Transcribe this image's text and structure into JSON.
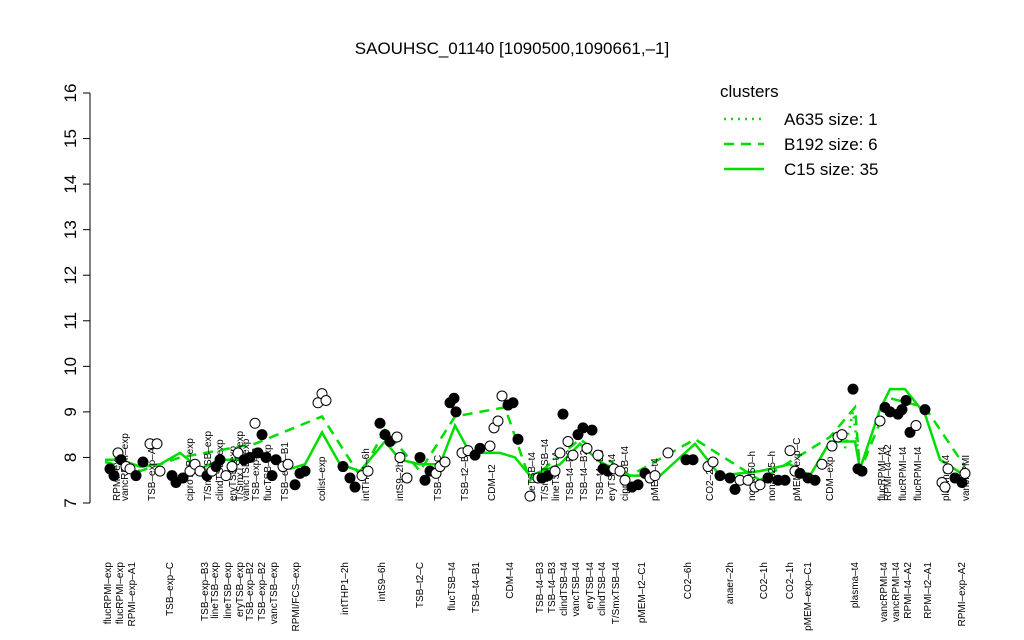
{
  "chart_data": {
    "type": "scatter",
    "title": "SAOUHSC_01140 [1090500,1090661,–1]",
    "xlim": [
      100,
      975
    ],
    "ylim": [
      7,
      16
    ],
    "yticks": [
      7,
      8,
      9,
      10,
      11,
      12,
      13,
      14,
      15,
      16
    ],
    "legend_title": "clusters",
    "legend_position": "upper right",
    "legend_color": "#00dd00",
    "series": [
      {
        "name": "A635 size: 1",
        "color": "#00dd00",
        "style": "dotted",
        "x": [
          845,
          853,
          860
        ],
        "values": [
          8.2,
          9.0,
          7.8
        ]
      },
      {
        "name": "B192 size: 6",
        "color": "#00dd00",
        "style": "dashed",
        "x": [
          105,
          140,
          180,
          255,
          322,
          360,
          385,
          420,
          455,
          505,
          530,
          580,
          630,
          695,
          760,
          830,
          855,
          860,
          890,
          925,
          965
        ],
        "values": [
          7.9,
          7.7,
          8.0,
          8.3,
          8.9,
          7.6,
          8.6,
          7.7,
          8.9,
          9.1,
          7.5,
          8.4,
          7.6,
          8.4,
          7.5,
          8.45,
          9.1,
          7.7,
          9.3,
          9.1,
          7.8
        ]
      },
      {
        "name": "C15 size: 35",
        "color": "#00dd00",
        "style": "solid",
        "x": [
          105,
          120,
          140,
          160,
          180,
          200,
          220,
          240,
          255,
          270,
          290,
          305,
          322,
          340,
          360,
          385,
          400,
          420,
          440,
          455,
          470,
          500,
          515,
          530,
          560,
          580,
          600,
          630,
          660,
          695,
          720,
          760,
          790,
          810,
          830,
          855,
          860,
          880,
          890,
          905,
          925,
          940,
          965
        ],
        "values": [
          7.95,
          7.95,
          7.8,
          7.85,
          8.1,
          7.75,
          7.95,
          7.95,
          8.05,
          7.95,
          7.75,
          7.85,
          8.55,
          7.85,
          7.7,
          8.35,
          7.95,
          7.85,
          7.85,
          8.7,
          8.1,
          8.1,
          8.0,
          7.6,
          7.85,
          8.3,
          7.9,
          7.6,
          7.6,
          8.3,
          7.6,
          7.7,
          7.85,
          7.6,
          8.35,
          8.35,
          7.75,
          9.05,
          9.5,
          9.5,
          8.95,
          7.95,
          7.6
        ]
      }
    ],
    "points": {
      "x": [
        110,
        114,
        118,
        121,
        126,
        130,
        136,
        143,
        150,
        157,
        160,
        172,
        176,
        183,
        190,
        195,
        200,
        207,
        212,
        216,
        220,
        226,
        232,
        238,
        244,
        250,
        255,
        258,
        262,
        266,
        272,
        276,
        283,
        288,
        295,
        300,
        305,
        318,
        322,
        326,
        343,
        350,
        355,
        362,
        368,
        380,
        385,
        390,
        397,
        400,
        407,
        420,
        425,
        430,
        436,
        440,
        445,
        450,
        454,
        456,
        462,
        468,
        475,
        480,
        490,
        494,
        498,
        502,
        508,
        513,
        518,
        530,
        538,
        542,
        548,
        555,
        560,
        563,
        568,
        573,
        578,
        583,
        587,
        592,
        598,
        603,
        608,
        614,
        620,
        625,
        632,
        638,
        645,
        650,
        655,
        668,
        686,
        693,
        708,
        713,
        720,
        730,
        735,
        740,
        748,
        755,
        760,
        768,
        778,
        785,
        790,
        795,
        800,
        808,
        815,
        822,
        832,
        838,
        842,
        853,
        858,
        862,
        880,
        885,
        890,
        898,
        902,
        906,
        910,
        916,
        925,
        942,
        945,
        948,
        955,
        962,
        965
      ],
      "values": [
        7.75,
        7.6,
        8.1,
        7.95,
        7.8,
        7.75,
        7.6,
        7.9,
        8.3,
        8.3,
        7.7,
        7.6,
        7.45,
        7.55,
        7.7,
        7.85,
        7.7,
        7.6,
        7.7,
        7.8,
        7.95,
        7.6,
        7.8,
        8.1,
        7.95,
        8.0,
        8.75,
        8.1,
        8.5,
        8.0,
        7.6,
        7.95,
        7.8,
        7.85,
        7.4,
        7.65,
        7.7,
        9.2,
        9.4,
        9.25,
        7.8,
        7.55,
        7.35,
        7.6,
        7.7,
        8.75,
        8.5,
        8.35,
        8.45,
        8.0,
        7.55,
        8.0,
        7.5,
        7.7,
        7.65,
        7.8,
        7.9,
        9.2,
        9.3,
        9.0,
        8.1,
        8.15,
        8.05,
        8.2,
        8.25,
        8.65,
        8.8,
        9.35,
        9.15,
        9.2,
        8.4,
        7.15,
        7.55,
        7.55,
        7.6,
        7.7,
        8.1,
        8.95,
        8.35,
        8.05,
        8.5,
        8.65,
        8.2,
        8.6,
        8.05,
        7.75,
        7.7,
        7.75,
        7.7,
        7.5,
        7.35,
        7.4,
        7.65,
        7.55,
        7.6,
        8.1,
        7.95,
        7.95,
        7.8,
        7.9,
        7.6,
        7.55,
        7.3,
        7.5,
        7.5,
        7.35,
        7.4,
        7.55,
        7.5,
        7.5,
        8.15,
        7.7,
        7.65,
        7.55,
        7.5,
        7.85,
        8.25,
        8.45,
        8.5,
        9.5,
        7.75,
        7.7,
        8.8,
        9.1,
        9.0,
        8.95,
        9.05,
        9.25,
        8.55,
        8.7,
        9.05,
        7.45,
        7.35,
        7.75,
        7.55,
        7.45,
        7.65
      ],
      "filled": [
        true,
        true,
        false,
        true,
        false,
        false,
        true,
        true,
        false,
        false,
        false,
        true,
        true,
        true,
        false,
        false,
        false,
        true,
        false,
        true,
        true,
        false,
        false,
        false,
        true,
        true,
        false,
        true,
        true,
        true,
        true,
        true,
        false,
        false,
        true,
        true,
        true,
        false,
        false,
        false,
        true,
        true,
        true,
        false,
        false,
        true,
        true,
        true,
        false,
        false,
        false,
        true,
        true,
        true,
        false,
        false,
        false,
        true,
        true,
        true,
        false,
        false,
        true,
        true,
        false,
        false,
        false,
        false,
        true,
        true,
        true,
        false,
        false,
        true,
        true,
        false,
        false,
        true,
        false,
        false,
        true,
        true,
        false,
        true,
        false,
        true,
        true,
        false,
        false,
        false,
        true,
        true,
        true,
        false,
        false,
        false,
        true,
        true,
        false,
        false,
        true,
        true,
        true,
        false,
        false,
        false,
        false,
        true,
        true,
        true,
        false,
        false,
        true,
        true,
        true,
        false,
        false,
        false,
        false,
        true,
        true,
        true,
        false,
        true,
        true,
        true,
        true,
        true,
        true,
        false,
        true,
        false,
        false,
        false,
        true,
        true,
        false
      ]
    },
    "top_labels": {
      "x": [
        117,
        125,
        152,
        190,
        208,
        220,
        233,
        240,
        246,
        256,
        268,
        285,
        322,
        366,
        400,
        438,
        465,
        492,
        532,
        545,
        556,
        570,
        584,
        600,
        612,
        625,
        655,
        710,
        752,
        772,
        797,
        830,
        882,
        888,
        903,
        918,
        946,
        966
      ],
      "labels": [
        "RPMI–exp",
        "vancRPMI–exp",
        "TSB–exp–A",
        "ciproTSB–exp",
        "T/SmxTSB–exp",
        "clindTSB–exp",
        "eryTSB–exp",
        "T/SmxTSB–exp",
        "vancTSB–exp",
        "TSB–exp–B",
        "flucTSB–exp",
        "TSB–exp–B1",
        "colist–exp",
        "intTHP1–6h",
        "intS9–2h",
        "TSB–t4–C",
        "TSB–t2–B1",
        "CDM–t2",
        "lineTSB–t4",
        "T/SmxTSB–t4",
        "lineTSB–t4",
        "TSB–t4–B2",
        "TSB–t4–B2",
        "TSB–t4–B3",
        "eryTSB–t4",
        "ciproTSB–t4",
        "pMEM–t4",
        "CO2–2h",
        "nonad50–h",
        "nonad25–h",
        "pMEM–exp–C",
        "CDM–exp",
        "flucRPMI–t4",
        "RPMI–t4–A2",
        "flucRPMI–t4",
        "flucRPMI–t4",
        "plasma–t4",
        "vancRPMI"
      ]
    },
    "bottom_labels": {
      "x": [
        108,
        120,
        132,
        170,
        205,
        215,
        228,
        240,
        250,
        262,
        274,
        296,
        345,
        382,
        420,
        452,
        476,
        510,
        540,
        552,
        564,
        576,
        590,
        602,
        616,
        642,
        688,
        730,
        764,
        790,
        808,
        855,
        884,
        896,
        908,
        928,
        962
      ],
      "labels": [
        "flucRPMI–exp",
        "flucRPMI–exp",
        "RPMI–exp–A1",
        "TSB–exp–C",
        "TSB–exp–B3",
        "lineTSB–exp",
        "lineTSB–exp",
        "eryTSB–exp",
        "TSB–exp–B2",
        "TSB–exp–B2",
        "vancTSB–exp",
        "RPMI/FCS–exp",
        "intTHP1–2h",
        "intS9–6h",
        "TSB–t2–C",
        "flucTSB–t4",
        "TSB–t4–B1",
        "CDM–t4",
        "TSB–t4–B3",
        "TSB–t4–B3",
        "clindTSB–t4",
        "vancTSB–t4",
        "eryTSB–t4",
        "clindTSB–t4",
        "T/SmxTSB–t4",
        "pMEM–t2–C1",
        "CO2–6h",
        "anaer–2h",
        "CO2–1h",
        "CO2–1h",
        "pMEM–exp–C1",
        "plasma–t4",
        "vancRPMI–t4",
        "vancRPMI–t4",
        "RPMI–t4–A2",
        "RPMI–t2–A1",
        "RPMI–exp–A2"
      ]
    }
  }
}
